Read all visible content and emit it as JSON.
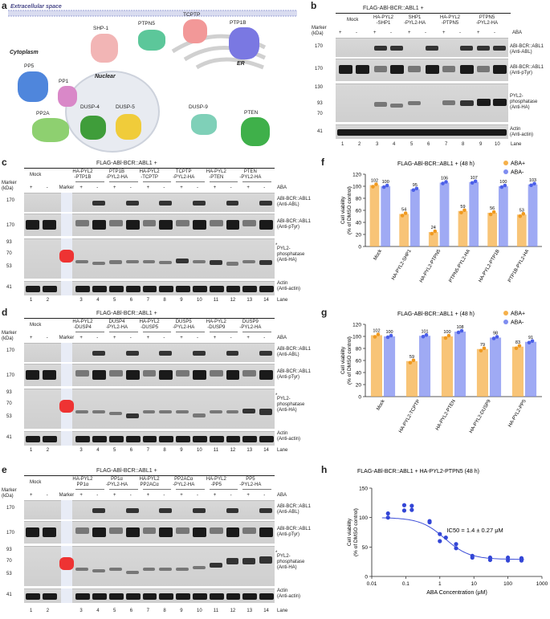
{
  "panels": {
    "a": "a",
    "b": "b",
    "c": "c",
    "d": "d",
    "e": "e",
    "f": "f",
    "g": "g",
    "h": "h"
  },
  "panel_a": {
    "extracellular": "Extracellular space",
    "cytoplasm": "Cytoplasm",
    "nuclear": "Nuclear",
    "er": "ER",
    "proteins": [
      "SHP-1",
      "PTPN5",
      "TCPTP",
      "PTP1B",
      "PP5",
      "PP1",
      "PP2A",
      "DUSP-4",
      "DUSP-5",
      "DUSP-9",
      "PTEN"
    ]
  },
  "blots": {
    "b": {
      "title": "FLAG-ABl-BCR::ABL1 +",
      "groups": [
        "Mock",
        "HA-PYL2\n-SHP1",
        "SHP1\n-PYL2-HA",
        "HA-PYL2\n-PTPN5",
        "PTPN5\n-PYL2-HA"
      ],
      "aba": [
        "+",
        "-",
        "+",
        "-",
        "+",
        "-",
        "+",
        "-",
        "+",
        "-"
      ],
      "lanes": [
        "1",
        "2",
        "3",
        "4",
        "5",
        "6",
        "7",
        "8",
        "9",
        "10"
      ],
      "rows": [
        "ABl-BCR::ABL1\n(Anti-ABL)",
        "ABl-BCR::ABL1\n(Anti-pTyr)",
        "PYL2-\nphosphatase\n(Anti-HA)",
        "Actin\n(Anti-actin)"
      ],
      "kda": [
        "170",
        "170",
        "130",
        "93",
        "70",
        "41"
      ]
    },
    "c": {
      "title": "FLAG-ABl-BCR::ABL1 +",
      "groups": [
        "Mock",
        "HA-PYL2\n-PTP1B",
        "PTP1B\n-PYL2-HA",
        "HA-PYL2\n-TCPTP",
        "TCPTP\n-PYL2-HA",
        "HA-PYL2\n-PTEN",
        "PTEN\n-PYL2-HA"
      ],
      "aba": [
        "+",
        "-",
        "+",
        "-",
        "+",
        "-",
        "+",
        "-",
        "+",
        "-",
        "+",
        "-",
        "+",
        "-"
      ],
      "lanes": [
        "1",
        "2",
        "3",
        "4",
        "5",
        "6",
        "7",
        "8",
        "9",
        "10",
        "11",
        "12",
        "13",
        "14"
      ],
      "rows": [
        "ABl-BCR::ABL1\n(Anti-ABL)",
        "ABl-BCR::ABL1\n(Anti-pTyr)",
        "PYL2-\nphosphatase\n(Anti-HA)",
        "Actin\n(Anti-actin)"
      ],
      "kda": [
        "170",
        "170",
        "93",
        "70",
        "53",
        "41"
      ]
    },
    "d": {
      "title": "FLAG-ABl-BCR::ABL1 +",
      "groups": [
        "Mock",
        "HA-PYL2\n-DUSP4",
        "DUSP4\n-PYL2-HA",
        "HA-PYL2\n-DUSP5",
        "DUSP5\n-PYL2-HA",
        "HA-PYL2\n-DUSP9",
        "DUSP9\n-PYL2-HA"
      ],
      "aba": [
        "+",
        "-",
        "+",
        "-",
        "+",
        "-",
        "+",
        "-",
        "+",
        "-",
        "+",
        "-",
        "+",
        "-"
      ],
      "lanes": [
        "1",
        "2",
        "3",
        "4",
        "5",
        "6",
        "7",
        "8",
        "9",
        "10",
        "11",
        "12",
        "13",
        "14"
      ],
      "rows": [
        "ABl-BCR::ABL1\n(Anti-ABL)",
        "ABl-BCR::ABL1\n(Anti-pTyr)",
        "PYL2-\nphosphatase\n(Anti-HA)",
        "Actin\n(Anti-actin)"
      ],
      "kda": [
        "170",
        "170",
        "93",
        "70",
        "53",
        "41"
      ]
    },
    "e": {
      "title": "FLAG-ABl-BCR::ABL1 +",
      "groups": [
        "Mock",
        "HA-PYL2\nPP1α",
        "PP1α\n-PYL2-HA",
        "HA-PYL2\nPP2ACα",
        "PP2ACα\n-PYL2-HA",
        "HA-PYL2\n-PP5",
        "PP5\n-PYL2-HA"
      ],
      "aba": [
        "+",
        "-",
        "+",
        "-",
        "+",
        "-",
        "+",
        "-",
        "+",
        "-",
        "+",
        "-",
        "+",
        "-"
      ],
      "lanes": [
        "1",
        "2",
        "3",
        "4",
        "5",
        "6",
        "7",
        "8",
        "9",
        "10",
        "11",
        "12",
        "13",
        "14"
      ],
      "rows": [
        "ABl-BCR::ABL1\n(Anti-ABL)",
        "ABl-BCR::ABL1\n(Anti-pTyr)",
        "PYL2-\nphosphatase\n(Anti-HA)",
        "Actin\n(Anti-actin)"
      ],
      "kda": [
        "170",
        "170",
        "93",
        "70",
        "53",
        "41"
      ]
    },
    "common": {
      "marker": "Marker",
      "kda_label": "Marker\n(kDa)",
      "aba_label": "ABA",
      "lane_label": "Lane",
      "star": "*"
    }
  },
  "colors": {
    "aba_plus": "#f5b04a",
    "aba_minus": "#7f8df0",
    "fit": "#3e4fd8",
    "dots_h": "#3346d6"
  },
  "chart_data": [
    {
      "type": "bar",
      "title": "FLAG-ABl-BCR::ABL1 + (48 h)",
      "ylabel": "Cell viability\n(% of DMSO control)",
      "categories": [
        "Mock",
        "HA-PYL2-SHP1",
        "HA-PYL2-PTPN5",
        "PTPN5-PYL2-HA",
        "HA-PYL2-PTP1B",
        "PTP1B-PYL2-HA"
      ],
      "series": [
        {
          "name": "ABA+",
          "values": [
            102,
            54,
            24,
            59,
            56,
            53
          ]
        },
        {
          "name": "ABA-",
          "values": [
            100,
            95,
            106,
            107,
            100,
            103
          ]
        }
      ],
      "ylim": [
        0,
        120
      ],
      "yticks": [
        0,
        20,
        40,
        60,
        80,
        100,
        120
      ],
      "legend": "top-right"
    },
    {
      "type": "bar",
      "title": "FLAG-ABl-BCR::ABL1 + (48 h)",
      "ylabel": "Cell viability\n(% of DMSO control)",
      "categories": [
        "Mock",
        "HA-PYL2-TCPTP",
        "HA-PYL2-PTEN",
        "HA-PYL2-DUSP9",
        "HA-PYL2-PP5"
      ],
      "series": [
        {
          "name": "ABA+",
          "values": [
            102,
            59,
            100,
            79,
            83
          ]
        },
        {
          "name": "ABA-",
          "values": [
            100,
            101,
            108,
            98,
            91
          ]
        }
      ],
      "ylim": [
        0,
        120
      ],
      "yticks": [
        0,
        20,
        40,
        60,
        80,
        100,
        120
      ],
      "legend": "top-right"
    },
    {
      "type": "scatter",
      "title": "FLAG-ABl-BCR::ABL1 + HA-PYL2-PTPN5 (48 h)",
      "xlabel": "ABA Concentration (μM)",
      "ylabel": "Cell viability\n(% of DMSO control)",
      "xscale": "log",
      "xlim": [
        0.01,
        1000
      ],
      "xticks": [
        "0.01",
        "0.1",
        "1",
        "10",
        "100",
        "1000"
      ],
      "ylim": [
        0,
        150
      ],
      "yticks": [
        0,
        50,
        100,
        150
      ],
      "annotation": "IC50 = 1.4 ± 0.27 μM",
      "points": [
        {
          "x": 0.03,
          "y": 107
        },
        {
          "x": 0.03,
          "y": 100
        },
        {
          "x": 0.09,
          "y": 112
        },
        {
          "x": 0.09,
          "y": 121
        },
        {
          "x": 0.15,
          "y": 120
        },
        {
          "x": 0.15,
          "y": 113
        },
        {
          "x": 0.5,
          "y": 94
        },
        {
          "x": 0.5,
          "y": 92
        },
        {
          "x": 1.0,
          "y": 72
        },
        {
          "x": 1.0,
          "y": 60
        },
        {
          "x": 1.5,
          "y": 66
        },
        {
          "x": 3,
          "y": 55
        },
        {
          "x": 3,
          "y": 48
        },
        {
          "x": 9,
          "y": 35
        },
        {
          "x": 9,
          "y": 32
        },
        {
          "x": 30,
          "y": 32
        },
        {
          "x": 30,
          "y": 28
        },
        {
          "x": 100,
          "y": 32
        },
        {
          "x": 100,
          "y": 27
        },
        {
          "x": 250,
          "y": 31
        },
        {
          "x": 250,
          "y": 27
        }
      ],
      "fit": {
        "top": 100,
        "bottom": 29,
        "ic50": 1.4
      }
    }
  ]
}
